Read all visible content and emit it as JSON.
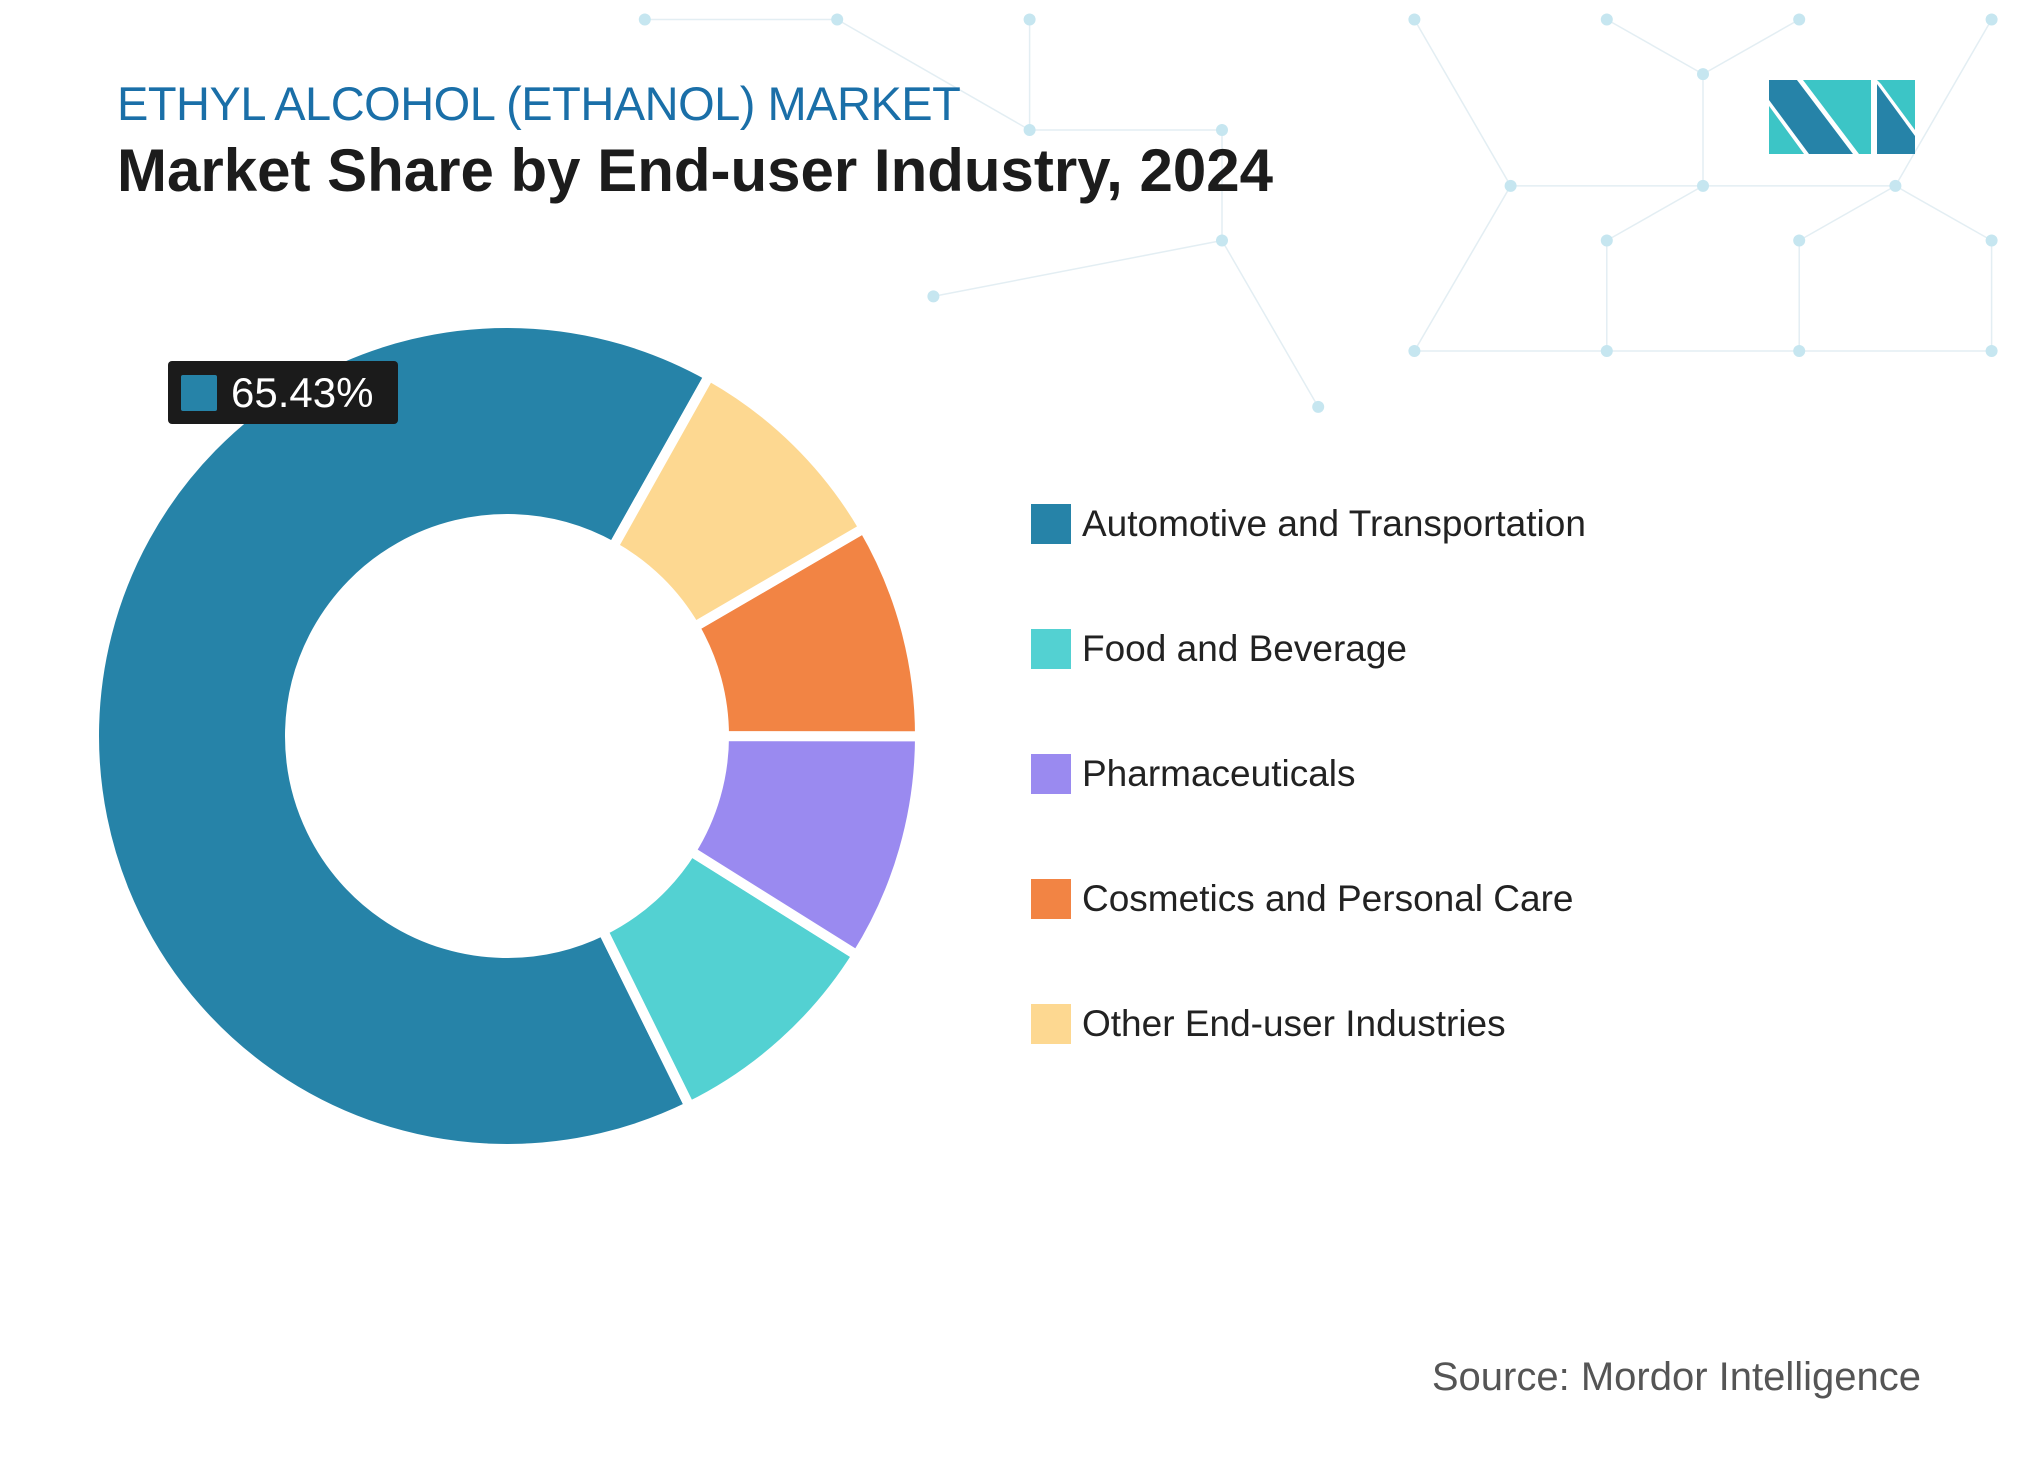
{
  "header": {
    "subtitle": "ETHYL ALCOHOL (ETHANOL) MARKET",
    "title": "Market Share by End-user Industry, 2024"
  },
  "logo": {
    "name": "mordor-intelligence-logo",
    "colors": [
      "#2683a8",
      "#3cc5c6"
    ]
  },
  "source": "Source: Mordor Intelligence",
  "chart_data": {
    "type": "pie",
    "subtype": "donut",
    "title": "Market Share by End-user Industry, 2024",
    "legend_position": "right",
    "categories": [
      "Automotive and Transportation",
      "Food and Beverage",
      "Pharmaceuticals",
      "Cosmetics and Personal Care",
      "Other End-user Industries"
    ],
    "values": [
      65.43,
      8.8,
      8.9,
      8.4,
      8.47
    ],
    "colors": [
      "#2683a8",
      "#53d1d2",
      "#9a8af0",
      "#f28444",
      "#fdd891"
    ],
    "data_labels": [
      {
        "category": "Automotive and Transportation",
        "text": "65.43%"
      }
    ]
  }
}
